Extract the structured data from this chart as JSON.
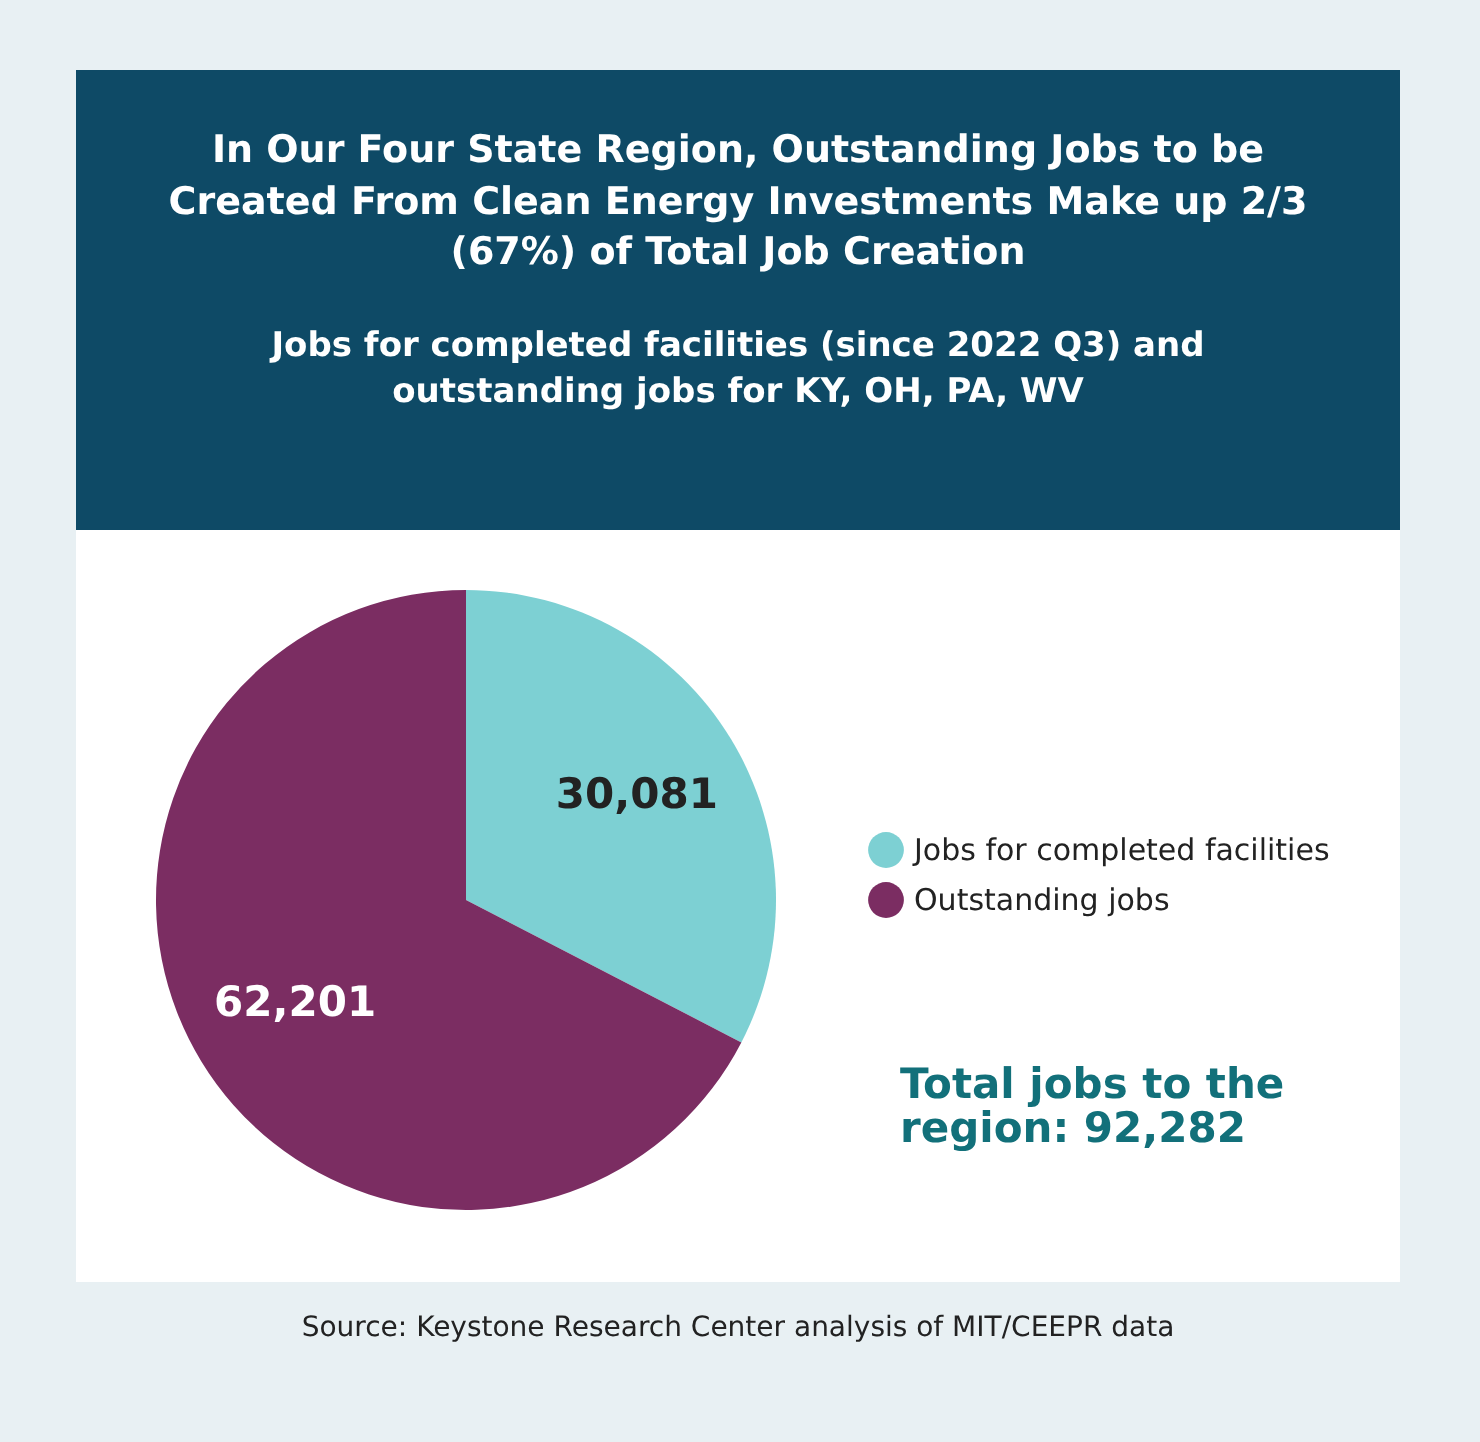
{
  "chart_data": {
    "type": "pie",
    "title": "In Our Four State Region, Outstanding Jobs to be Created From Clean Energy Investments Make up 2/3 (67%) of Total Job Creation",
    "subtitle": "Jobs for completed facilities (since 2022 Q3) and outstanding jobs for KY, OH, PA, WV",
    "categories": [
      "Jobs for completed facilities",
      "Outstanding jobs"
    ],
    "values": [
      30081,
      62201
    ],
    "colors": [
      "#7dd0d3",
      "#7b2d62"
    ],
    "value_labels": [
      "30,081",
      "62,201"
    ],
    "legend": "right",
    "annotations": [
      "Total jobs to the region: 92,282",
      "Source: Keystone Research Center analysis of MIT/CEEPR data"
    ]
  }
}
